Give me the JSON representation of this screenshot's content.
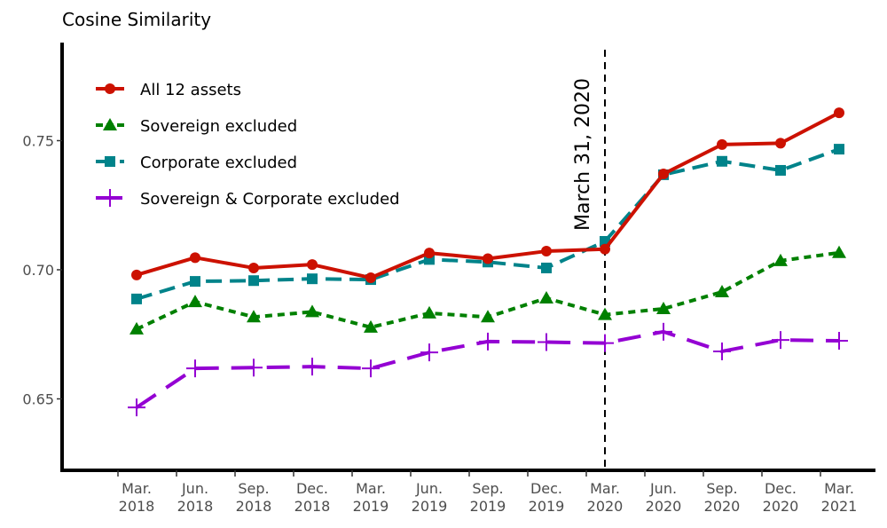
{
  "chart_data": {
    "type": "line",
    "title": "Cosine Similarity",
    "xlabel": "",
    "ylabel": "Cosine Similarity",
    "categories": [
      [
        "Mar.",
        "2018"
      ],
      [
        "Jun.",
        "2018"
      ],
      [
        "Sep.",
        "2018"
      ],
      [
        "Dec.",
        "2018"
      ],
      [
        "Mar.",
        "2019"
      ],
      [
        "Jun.",
        "2019"
      ],
      [
        "Sep.",
        "2019"
      ],
      [
        "Dec.",
        "2019"
      ],
      [
        "Mar.",
        "2020"
      ],
      [
        "Jun.",
        "2020"
      ],
      [
        "Sep.",
        "2020"
      ],
      [
        "Dec.",
        "2020"
      ],
      [
        "Mar.",
        "2021"
      ]
    ],
    "yticks": [
      0.65,
      0.7,
      0.75
    ],
    "ytick_labels": [
      "0.65",
      "0.70",
      "0.75"
    ],
    "ylim": [
      0.623,
      0.777
    ],
    "grid": false,
    "legend_position": "top-left",
    "series": [
      {
        "name": "All 12 assets",
        "color": "#cc1100",
        "marker": "circle",
        "linestyle": "solid",
        "values": [
          0.698,
          0.7047,
          0.7007,
          0.702,
          0.6969,
          0.7065,
          0.7043,
          0.7072,
          0.708,
          0.7371,
          0.7485,
          0.749,
          0.7608
        ]
      },
      {
        "name": "Sovereign excluded",
        "color": "#008000",
        "marker": "triangle",
        "linestyle": "dotted",
        "values": [
          0.677,
          0.6876,
          0.6817,
          0.6837,
          0.6777,
          0.6832,
          0.6817,
          0.689,
          0.6826,
          0.6849,
          0.6914,
          0.7035,
          0.7066
        ]
      },
      {
        "name": "Corporate excluded",
        "color": "#00838a",
        "marker": "square",
        "linestyle": "dashed",
        "values": [
          0.6887,
          0.6955,
          0.6958,
          0.6965,
          0.6962,
          0.704,
          0.703,
          0.7007,
          0.711,
          0.7368,
          0.742,
          0.7385,
          0.7467
        ]
      },
      {
        "name": "Sovereign & Corporate excluded",
        "color": "#9400d3",
        "marker": "plus",
        "linestyle": "longdash",
        "values": [
          0.6467,
          0.6618,
          0.6621,
          0.6625,
          0.6618,
          0.668,
          0.6722,
          0.672,
          0.6716,
          0.676,
          0.6684,
          0.6728,
          0.6725
        ]
      }
    ],
    "annotations": [
      {
        "type": "vline",
        "at_category": 8,
        "label": "March 31, 2020",
        "linestyle": "dashed",
        "color": "#000000"
      }
    ]
  }
}
